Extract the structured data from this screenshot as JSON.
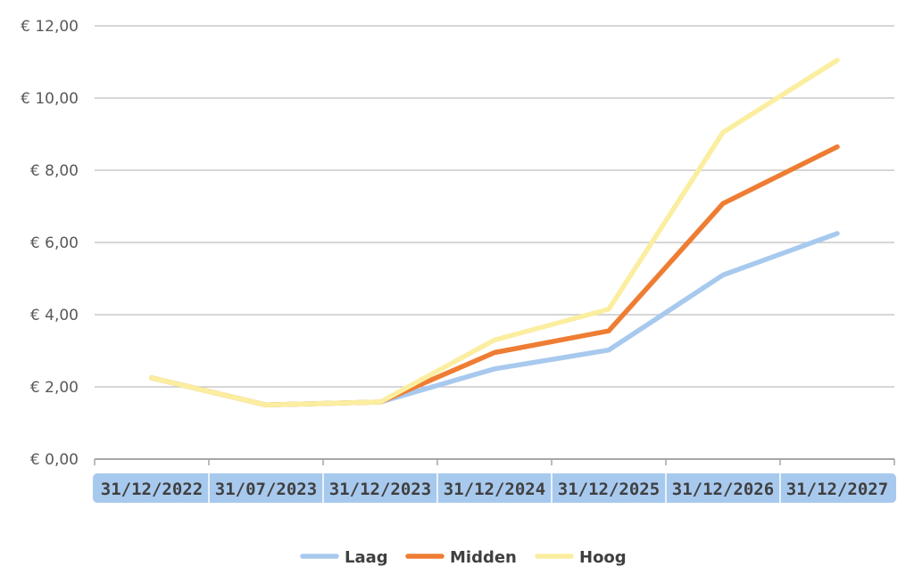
{
  "chart_data": {
    "type": "line",
    "title": "",
    "xlabel": "",
    "ylabel": "",
    "categories": [
      "31/12/2022",
      "31/07/2023",
      "31/12/2023",
      "31/12/2024",
      "31/12/2025",
      "31/12/2026",
      "31/12/2027"
    ],
    "ylim": [
      0,
      12
    ],
    "yticks": [
      0,
      2,
      4,
      6,
      8,
      10,
      12
    ],
    "ytick_labels": [
      "€ 0,00",
      "€ 2,00",
      "€ 4,00",
      "€ 6,00",
      "€ 8,00",
      "€ 10,00",
      "€ 12,00"
    ],
    "grid": true,
    "legend_position": "bottom",
    "series": [
      {
        "name": "Laag",
        "color": "#a8c9ee",
        "values": [
          2.25,
          1.5,
          1.58,
          2.5,
          3.02,
          5.1,
          6.25
        ]
      },
      {
        "name": "Midden",
        "color": "#ee7d33",
        "values": [
          2.25,
          1.5,
          1.58,
          2.95,
          3.55,
          7.08,
          8.65
        ]
      },
      {
        "name": "Hoog",
        "color": "#fbeea0",
        "values": [
          2.25,
          1.5,
          1.58,
          3.3,
          4.15,
          9.05,
          11.05
        ]
      }
    ],
    "category_band_color": "#a8c9ee"
  }
}
